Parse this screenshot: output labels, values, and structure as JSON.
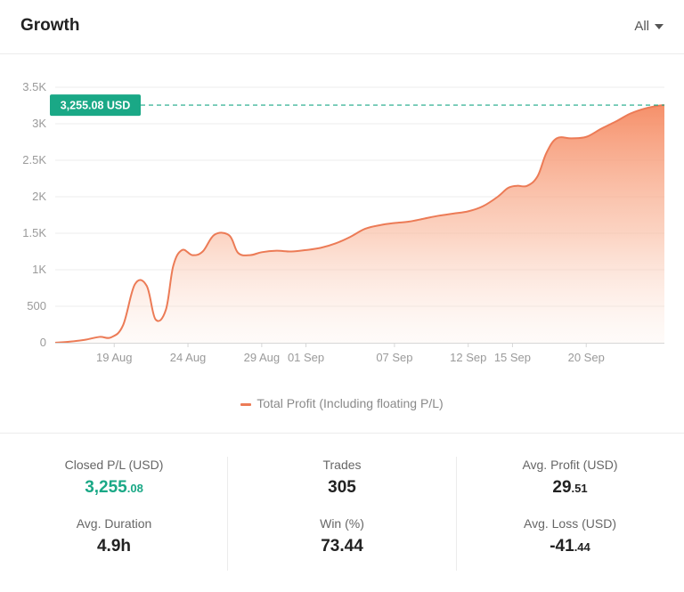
{
  "header": {
    "title": "Growth",
    "filter_label": "All"
  },
  "chart_data": {
    "type": "area",
    "title": "Growth",
    "y_unit": "USD",
    "ylim": [
      0,
      3500
    ],
    "yticks": [
      0,
      500,
      1000,
      1500,
      2000,
      2500,
      3000,
      3500
    ],
    "ytick_labels": [
      "0",
      "500",
      "1K",
      "1.5K",
      "2K",
      "2.5K",
      "3K",
      "3.5K"
    ],
    "x_start": "2023-08-15",
    "xticks": [
      {
        "day": 4,
        "label": "19 Aug"
      },
      {
        "day": 9,
        "label": "24 Aug"
      },
      {
        "day": 14,
        "label": "29 Aug"
      },
      {
        "day": 17,
        "label": "01 Sep"
      },
      {
        "day": 23,
        "label": "07 Sep"
      },
      {
        "day": 28,
        "label": "12 Sep"
      },
      {
        "day": 31,
        "label": "15 Sep"
      },
      {
        "day": 36,
        "label": "20 Sep"
      }
    ],
    "xlim": [
      0,
      41.3
    ],
    "series": [
      {
        "name": "Total Profit (Including floating P/L)",
        "x": [
          0,
          1,
          2,
          3,
          3.8,
          4.6,
          5.4,
          6.2,
          6.8,
          7.5,
          8,
          8.6,
          9.3,
          10,
          10.8,
          11.8,
          12.4,
          13.2,
          14,
          15,
          16,
          17,
          18,
          19,
          20,
          21,
          22,
          23,
          24,
          25,
          26,
          27,
          28,
          29,
          30,
          30.7,
          31.3,
          32,
          32.7,
          33.3,
          34,
          35,
          36,
          37,
          38,
          39,
          40,
          41,
          41.3
        ],
        "values": [
          0,
          15,
          40,
          80,
          75,
          240,
          800,
          780,
          320,
          450,
          1050,
          1270,
          1200,
          1250,
          1480,
          1470,
          1230,
          1200,
          1240,
          1260,
          1250,
          1270,
          1300,
          1360,
          1450,
          1560,
          1610,
          1640,
          1660,
          1700,
          1740,
          1770,
          1800,
          1870,
          2000,
          2120,
          2150,
          2150,
          2280,
          2600,
          2800,
          2800,
          2820,
          2930,
          3030,
          3140,
          3210,
          3250,
          3255
        ]
      }
    ],
    "highlight": {
      "value": 3255.08,
      "label": "3,255.08 USD"
    },
    "legend": "Total Profit (Including floating P/L)",
    "colors": {
      "line": "#ec7b56",
      "fill_top": "#f6906a",
      "callout": "#1aa886",
      "grid": "#ececec"
    }
  },
  "stats": {
    "closed_pl": {
      "label": "Closed P/L (USD)",
      "int": "3,255",
      "dec": ".08"
    },
    "avg_duration": {
      "label": "Avg. Duration",
      "value": "4.9h"
    },
    "trades": {
      "label": "Trades",
      "value": "305"
    },
    "win": {
      "label": "Win (%)",
      "value": "73.44"
    },
    "avg_profit": {
      "label": "Avg. Profit (USD)",
      "int": "29",
      "dec": ".51"
    },
    "avg_loss": {
      "label": "Avg. Loss (USD)",
      "int": "-41",
      "dec": ".44"
    }
  }
}
